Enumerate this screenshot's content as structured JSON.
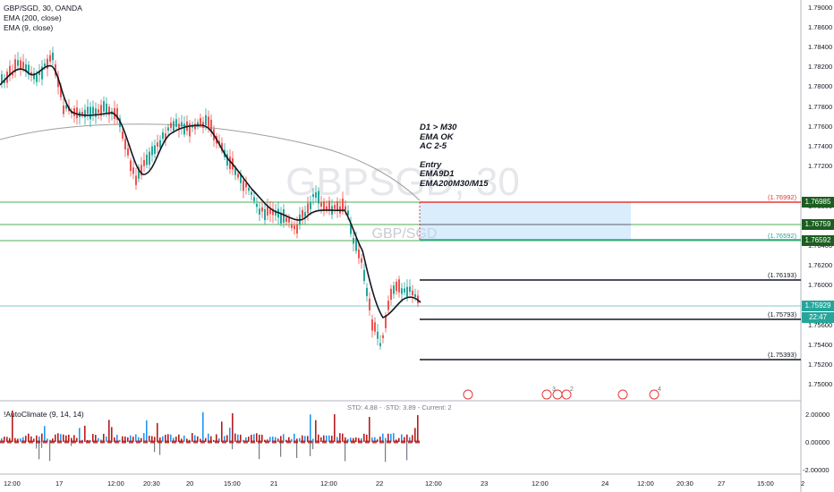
{
  "legend": {
    "symbol": "GBP/SGD, 30, OANDA",
    "ema200": "EMA (200, close)",
    "ema9": "EMA (9, close)"
  },
  "watermark": {
    "main": "GBPSGD, 30",
    "sub": "GBP/SGD"
  },
  "annotation": [
    "D1 > M30",
    "EMA OK",
    "AC 2-5",
    "",
    "Entry",
    "EMA9D1",
    "EMA200M30/M15"
  ],
  "price_axis": {
    "ticks": [
      "1.79000",
      "1.78600",
      "1.78400",
      "1.78200",
      "1.78000",
      "1.77800",
      "1.77600",
      "1.77400",
      "1.77200",
      "1.76800",
      "1.76400",
      "1.76200",
      "1.76000",
      "1.75600",
      "1.75400",
      "1.75200",
      "1.75000"
    ],
    "labels": {
      "top_level": "1.76985",
      "mid_level": "1.76759",
      "low_level": "1.76592",
      "current": "1.75929",
      "countdown": "22:47"
    }
  },
  "levels": [
    "(1.76992)",
    "(1.76592)",
    "(1.76193)",
    "(1.75793)",
    "(1.75393)"
  ],
  "time_axis": [
    "12:00",
    "17",
    "12:00",
    "20:30",
    "20",
    "15:00",
    "21",
    "12:00",
    "22",
    "12:00",
    "23",
    "12:00",
    "24",
    "12:00",
    "20:30",
    "27",
    "15:00",
    "2"
  ],
  "indicator": {
    "title": "!AutoClimate (9, 14, 14)",
    "stats": "STD: 4.88 - ·STD: 3.89 - Current: 2",
    "ticks": [
      "2.00000",
      "0.00000",
      "-2.00000"
    ]
  },
  "signals": [
    "3",
    "2",
    "4"
  ],
  "colors": {
    "up": "#26a69a",
    "down": "#ef5350",
    "green_level": "#4caf50",
    "red_level": "#e53935",
    "bar_blue": "#2196f3",
    "bar_red": "#b71c1c"
  }
}
